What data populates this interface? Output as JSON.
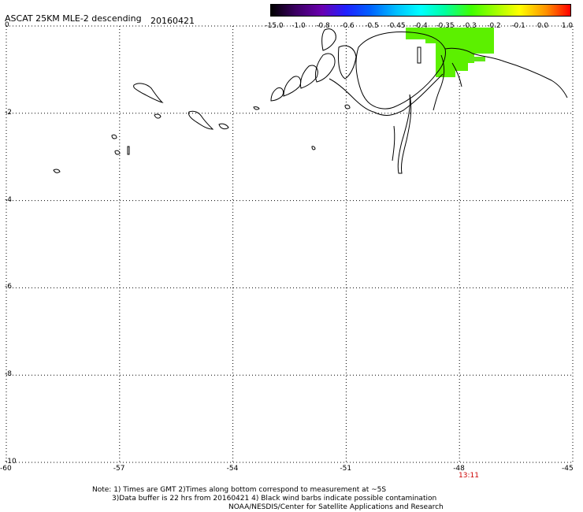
{
  "header": {
    "title": "ASCAT 25KM MLE-2 descending",
    "date": "20160421"
  },
  "colorbar": {
    "labels": [
      "-15.0",
      "-1.0",
      "-0.8",
      "-0.6",
      "-0.5",
      "-0.45",
      "-0.4",
      "-0.35",
      "-0.3",
      "-0.2",
      "-0.1",
      "0.0",
      "1.0"
    ],
    "colors": [
      "#000000",
      "#3a0060",
      "#6a00b0",
      "#2020ff",
      "#0060ff",
      "#00c0ff",
      "#00ffff",
      "#00ffa0",
      "#40ff00",
      "#a0ff00",
      "#ffff00",
      "#ff9000",
      "#ff0000"
    ]
  },
  "axes": {
    "x_ticks": [
      "-60",
      "-57",
      "-54",
      "-51",
      "-48",
      "-45"
    ],
    "y_ticks": [
      "0",
      "-2",
      "-4",
      "-6",
      "-8",
      "-10"
    ]
  },
  "time_label": "13:11",
  "notes": {
    "line1": "Note: 1) Times are GMT 2)Times along bottom correspond to measurement at ~5S",
    "line2": "3)Data buffer is 22 hrs from 20160421 4) Black wind barbs indicate possible contamination",
    "line3": "NOAA/NESDIS/Center for Satellite Applications and Research"
  },
  "data_swath": {
    "color_main": "#5cf000",
    "color_edge": "#60e818"
  }
}
